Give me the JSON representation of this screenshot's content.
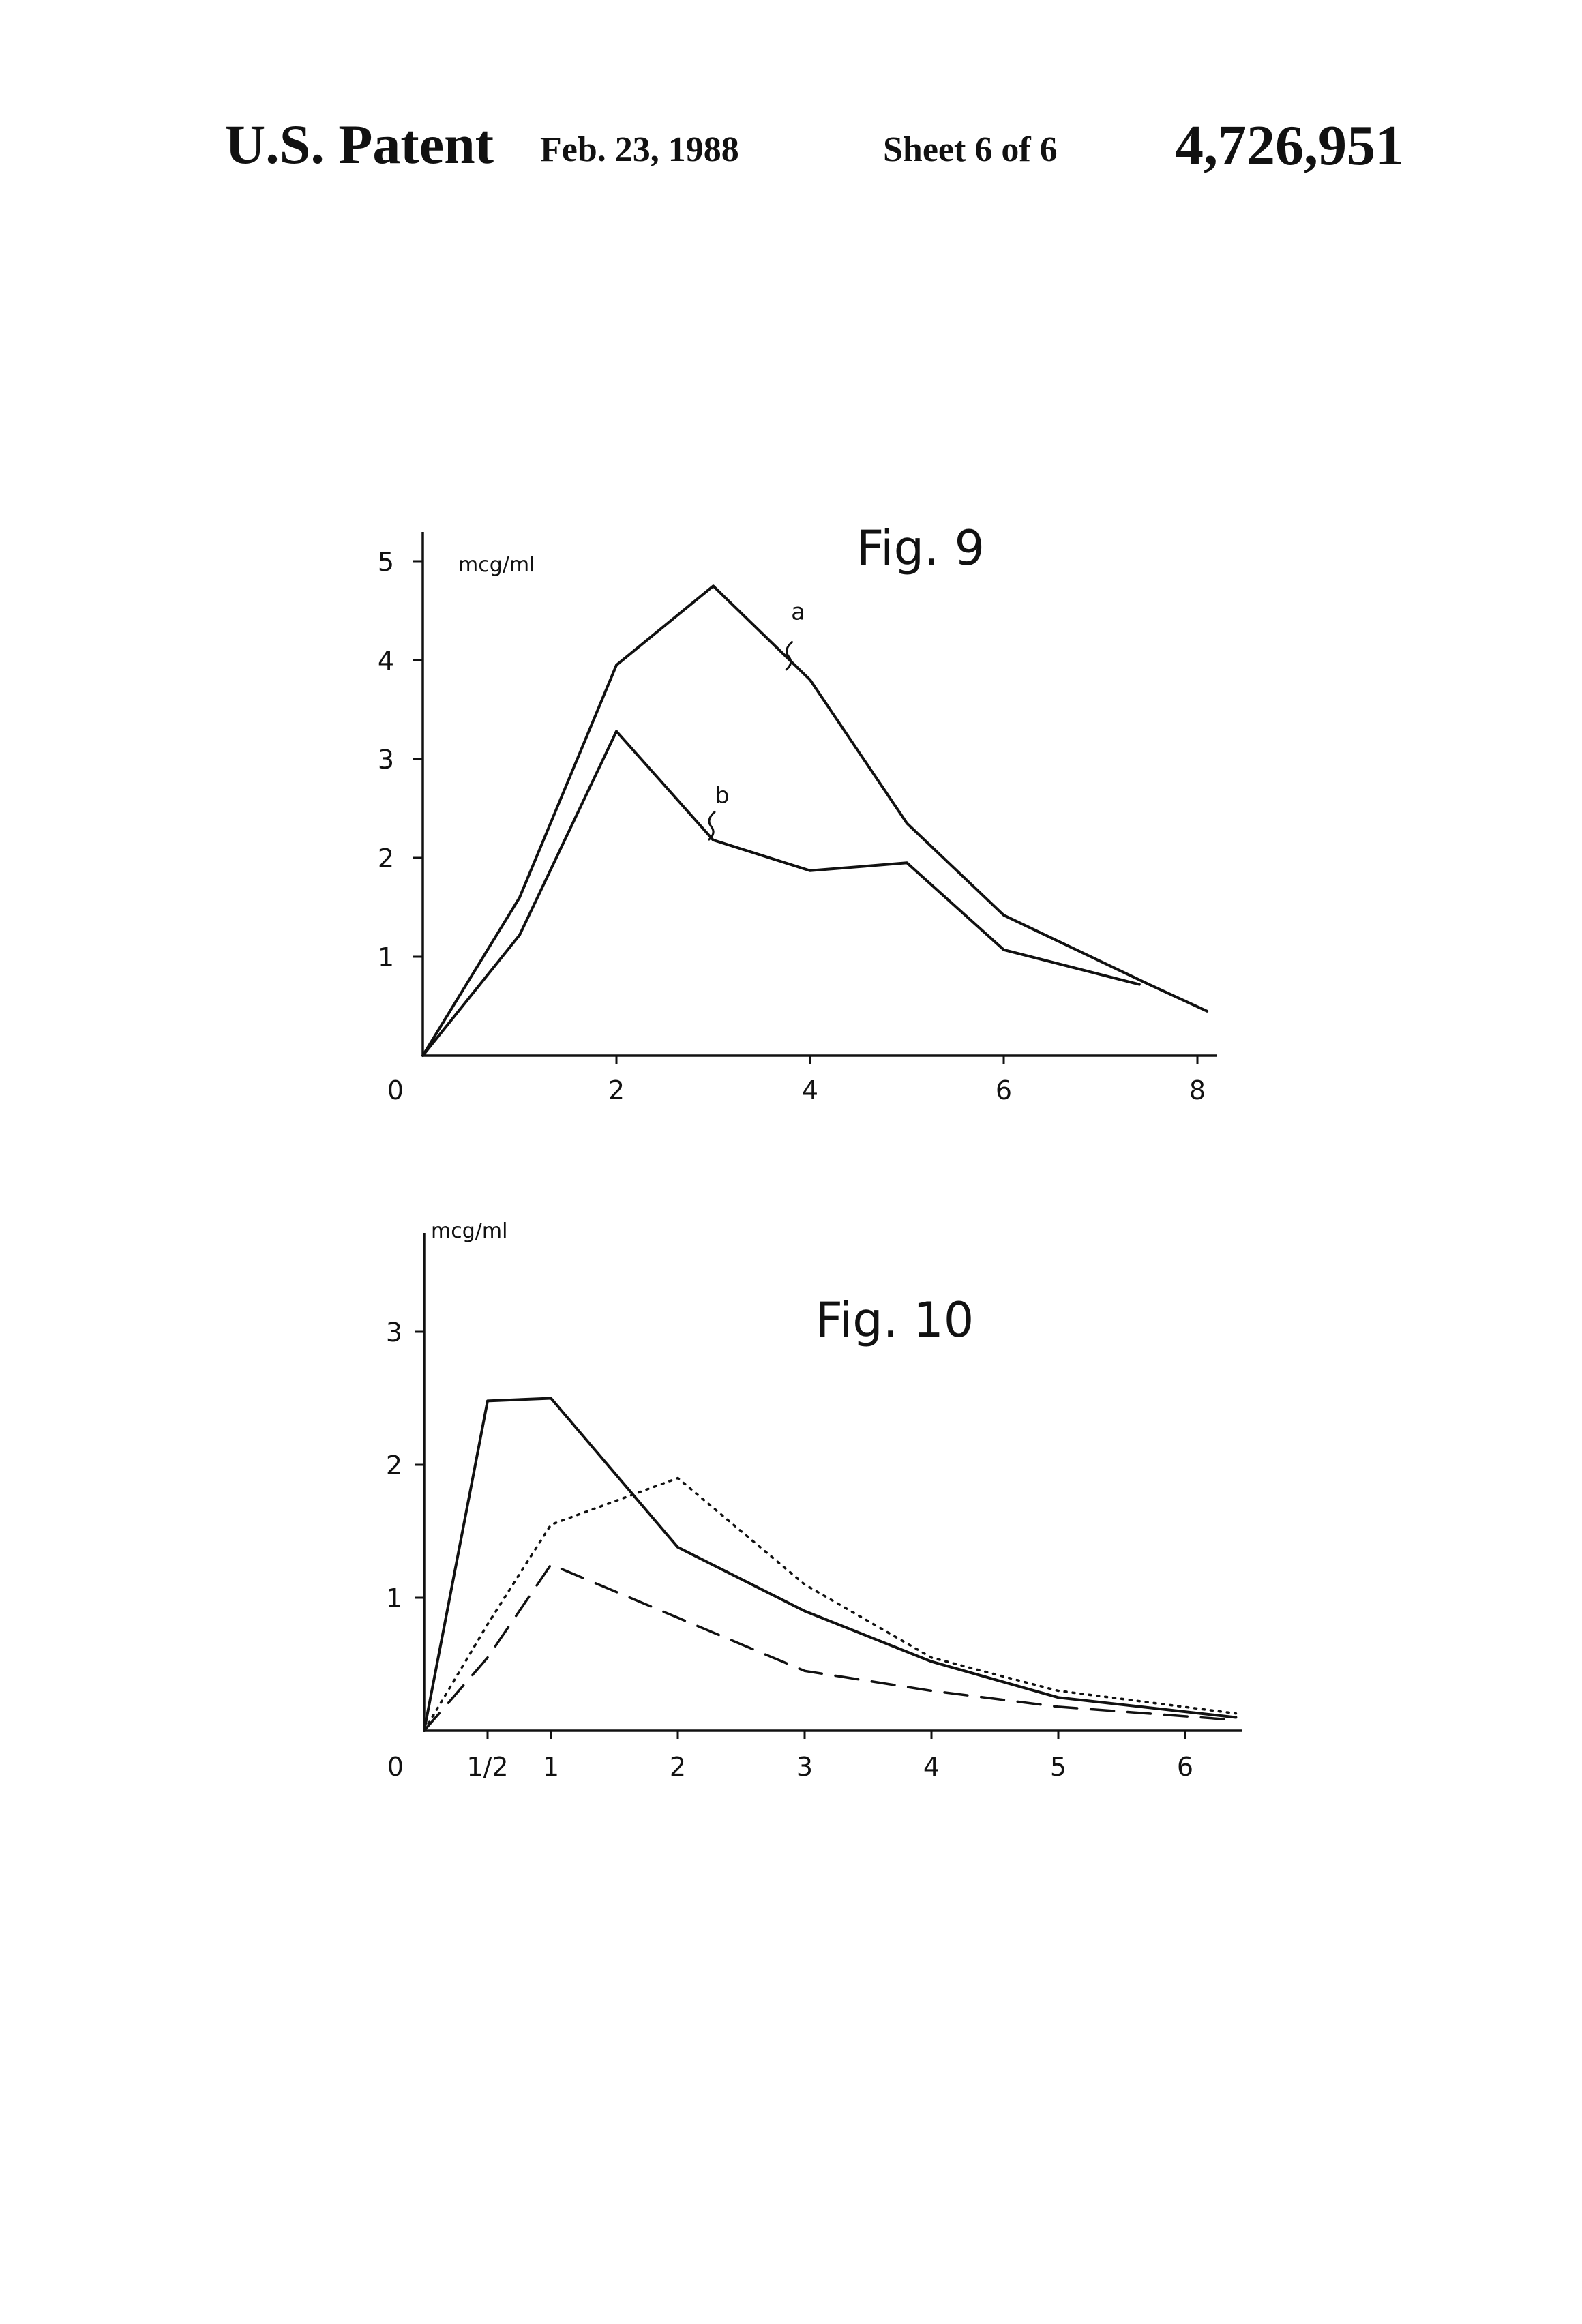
{
  "header": {
    "title": "U.S. Patent",
    "date": "Feb. 23, 1988",
    "sheet": "Sheet 6 of 6",
    "patent_number": "4,726,951"
  },
  "chart_data": [
    {
      "type": "line",
      "title": "Fig. 9",
      "ylabel": "mcg/ml",
      "xlabel": "",
      "origin_label": "0",
      "xlim": [
        0,
        8.2
      ],
      "ylim": [
        0,
        5
      ],
      "x_ticks": [
        2,
        4,
        6,
        8
      ],
      "y_ticks": [
        1,
        2,
        3,
        4,
        5
      ],
      "grid": false,
      "series": [
        {
          "name": "a",
          "style": "solid",
          "color": "#111111",
          "x": [
            0,
            1,
            2,
            3,
            4,
            5,
            6,
            7.5,
            8.1
          ],
          "y": [
            0,
            1.6,
            3.95,
            4.75,
            3.8,
            2.35,
            1.42,
            0.72,
            0.45
          ]
        },
        {
          "name": "b",
          "style": "solid",
          "color": "#111111",
          "x": [
            0,
            1,
            2,
            3,
            4,
            5,
            6,
            7.4
          ],
          "y": [
            0,
            1.22,
            3.28,
            2.18,
            1.87,
            1.95,
            1.07,
            0.72
          ]
        }
      ]
    },
    {
      "type": "line",
      "title": "Fig. 10",
      "ylabel": "mcg/ml",
      "xlabel": "",
      "origin_label": "0",
      "xlim": [
        0,
        6.4
      ],
      "ylim": [
        0,
        3
      ],
      "x_ticks": [
        0.5,
        1,
        2,
        3,
        4,
        5,
        6
      ],
      "x_tick_labels": [
        "1/2",
        "1",
        "2",
        "3",
        "4",
        "5",
        "6"
      ],
      "y_ticks": [
        1,
        2,
        3
      ],
      "grid": false,
      "series": [
        {
          "style": "solid",
          "color": "#111111",
          "x": [
            0,
            0.5,
            1,
            2,
            3,
            4,
            5,
            6.4
          ],
          "y": [
            0,
            2.48,
            2.5,
            1.38,
            0.9,
            0.52,
            0.25,
            0.1
          ]
        },
        {
          "style": "dotted",
          "color": "#111111",
          "x": [
            0,
            0.5,
            1,
            2,
            3,
            4,
            5,
            6.4
          ],
          "y": [
            0,
            0.8,
            1.55,
            1.9,
            1.1,
            0.55,
            0.3,
            0.13
          ]
        },
        {
          "style": "dashed",
          "color": "#111111",
          "x": [
            0,
            0.5,
            1,
            2,
            3,
            4,
            5,
            6.4
          ],
          "y": [
            0,
            0.55,
            1.25,
            0.85,
            0.45,
            0.3,
            0.18,
            0.08
          ]
        }
      ]
    }
  ]
}
